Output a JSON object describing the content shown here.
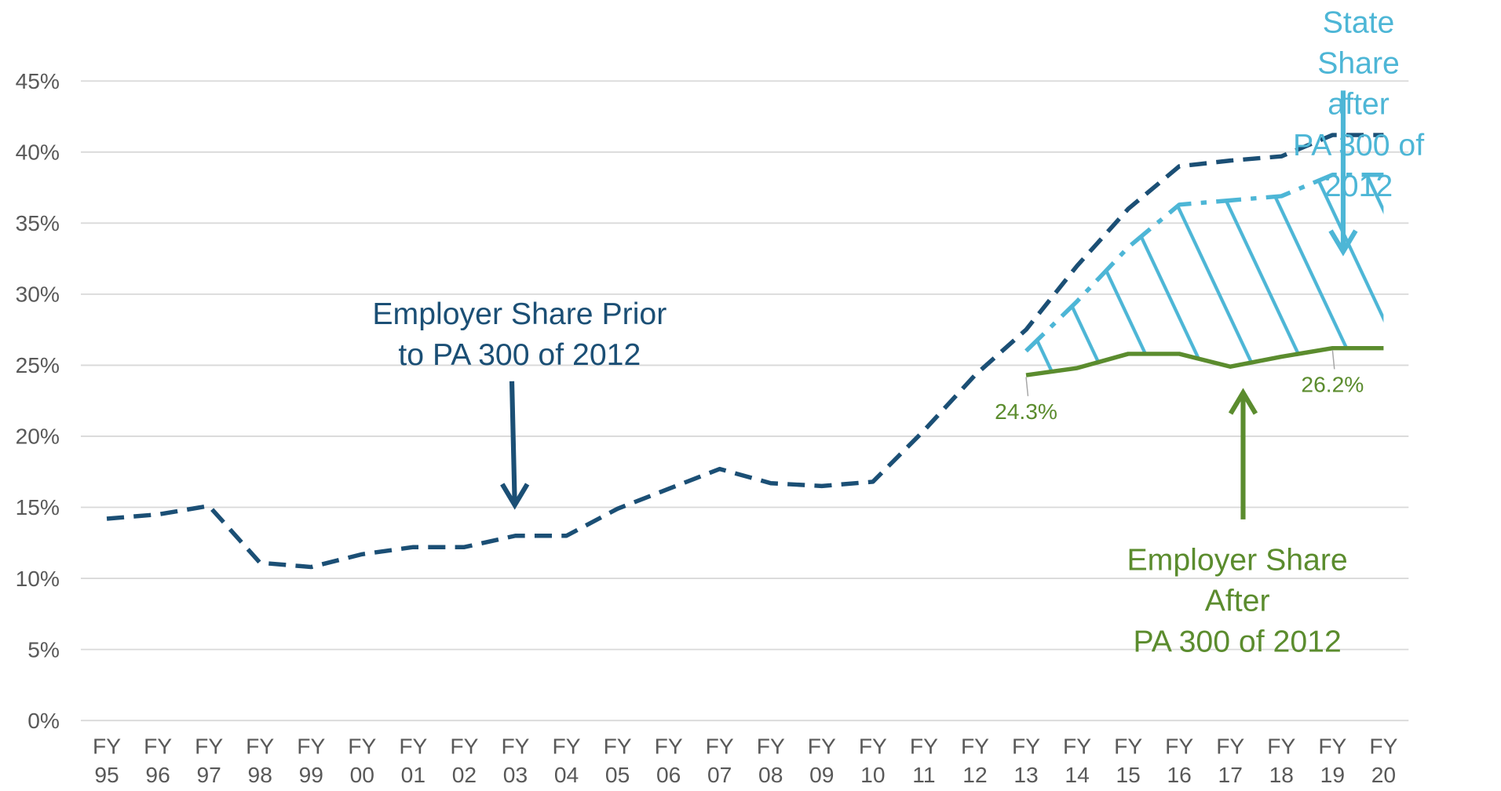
{
  "chart_data": {
    "type": "line",
    "categories": [
      "FY 95",
      "FY 96",
      "FY 97",
      "FY 98",
      "FY 99",
      "FY 00",
      "FY 01",
      "FY 02",
      "FY 03",
      "FY 04",
      "FY 05",
      "FY 06",
      "FY 07",
      "FY 08",
      "FY 09",
      "FY 10",
      "FY 11",
      "FY 12",
      "FY 13",
      "FY 14",
      "FY 15",
      "FY 16",
      "FY 17",
      "FY 18",
      "FY 19",
      "FY 20"
    ],
    "series": [
      {
        "name": "Employer Share Prior to PA 300 of 2012",
        "color": "#1b4f75",
        "style": "dashed",
        "values": [
          14.2,
          14.5,
          15.1,
          11.1,
          10.8,
          11.7,
          12.2,
          12.2,
          13.0,
          13.0,
          14.9,
          16.3,
          17.7,
          16.7,
          16.5,
          16.8,
          20.4,
          24.3,
          27.5,
          32.0,
          36.0,
          39.0,
          39.4,
          39.7,
          41.2,
          41.2
        ]
      },
      {
        "name": "State Share after PA 300 of 2012",
        "color": "#4db6d6",
        "style": "dashdot",
        "values": [
          null,
          null,
          null,
          null,
          null,
          null,
          null,
          null,
          null,
          null,
          null,
          null,
          null,
          null,
          null,
          null,
          null,
          null,
          26.0,
          29.5,
          33.3,
          36.3,
          36.6,
          36.9,
          38.4,
          38.4
        ]
      },
      {
        "name": "Employer Share After PA 300 of 2012",
        "color": "#5b8c2e",
        "style": "solid",
        "values": [
          null,
          null,
          null,
          null,
          null,
          null,
          null,
          null,
          null,
          null,
          null,
          null,
          null,
          null,
          null,
          null,
          null,
          null,
          24.3,
          24.8,
          25.8,
          25.8,
          24.9,
          25.6,
          26.2,
          26.2
        ],
        "value_labels": [
          null,
          null,
          null,
          null,
          null,
          null,
          null,
          null,
          null,
          null,
          null,
          null,
          null,
          null,
          null,
          null,
          null,
          null,
          "24.3%",
          null,
          null,
          null,
          null,
          null,
          "26.2%",
          null
        ]
      }
    ],
    "annotations": [
      {
        "lines": [
          "Employer Share Prior",
          "to PA 300 of 2012"
        ],
        "color": "#1b4f75"
      },
      {
        "lines": [
          "State Share after",
          "PA 300 of 2012"
        ],
        "color": "#4db6d6"
      },
      {
        "lines": [
          "Employer Share After",
          "PA 300 of 2012"
        ],
        "color": "#5b8c2e"
      }
    ],
    "ylim": [
      0,
      45
    ],
    "yticks": [
      {
        "value": 0,
        "label": "0%"
      },
      {
        "value": 5,
        "label": "5%"
      },
      {
        "value": 10,
        "label": "10%"
      },
      {
        "value": 15,
        "label": "15%"
      },
      {
        "value": 20,
        "label": "20%"
      },
      {
        "value": 25,
        "label": "25%"
      },
      {
        "value": 30,
        "label": "30%"
      },
      {
        "value": 35,
        "label": "35%"
      },
      {
        "value": 40,
        "label": "40%"
      },
      {
        "value": 45,
        "label": "45%"
      }
    ],
    "grid": true
  }
}
